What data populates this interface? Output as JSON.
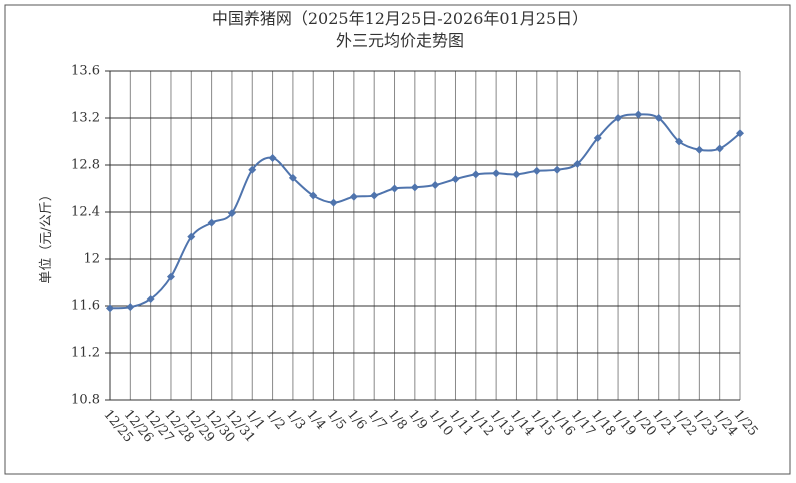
{
  "chart_data": {
    "type": "line",
    "title": "中国养猪网（2025年12月25日-2026年01月25日）",
    "subtitle": "外三元均价走势图",
    "y_label": "单位（元/公斤）",
    "categories": [
      "12/25",
      "12/26",
      "12/27",
      "12/28",
      "12/29",
      "12/30",
      "12/31",
      "1/1",
      "1/2",
      "1/3",
      "1/4",
      "1/5",
      "1/6",
      "1/7",
      "1/8",
      "1/9",
      "1/10",
      "1/11",
      "1/12",
      "1/13",
      "1/14",
      "1/15",
      "1/16",
      "1/17",
      "1/18",
      "1/19",
      "1/20",
      "1/21",
      "1/22",
      "1/23",
      "1/24",
      "1/25"
    ],
    "series": [
      {
        "name": "外三元",
        "color": "#4f74ad",
        "values": [
          11.58,
          11.59,
          11.66,
          11.85,
          12.19,
          12.31,
          12.39,
          12.76,
          12.86,
          12.69,
          12.54,
          12.48,
          12.53,
          12.54,
          12.6,
          12.61,
          12.63,
          12.68,
          12.72,
          12.73,
          12.72,
          12.75,
          12.76,
          12.81,
          13.03,
          13.2,
          13.23,
          13.2,
          13.0,
          12.93,
          12.94,
          13.07
        ]
      }
    ],
    "ylim": [
      10.8,
      13.6
    ],
    "yticks": [
      10.8,
      11.2,
      11.6,
      12,
      12.4,
      12.8,
      13.2,
      13.6
    ],
    "grid": true
  }
}
